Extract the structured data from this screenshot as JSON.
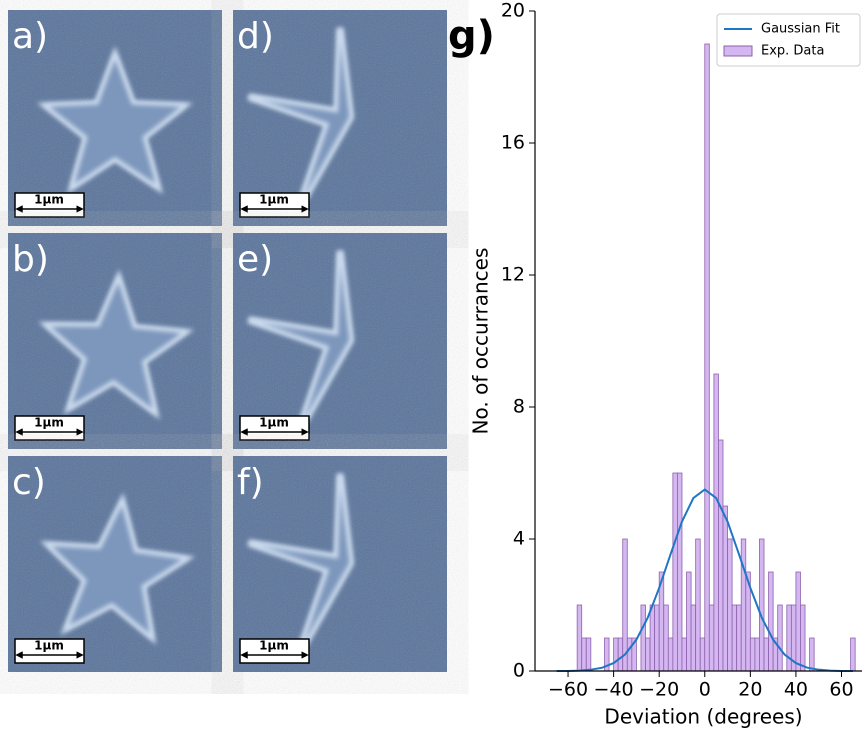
{
  "panels": [
    {
      "label": "a)",
      "scale": "1µm",
      "shape": "star"
    },
    {
      "label": "b)",
      "scale": "1µm",
      "shape": "star"
    },
    {
      "label": "c)",
      "scale": "1µm",
      "shape": "star"
    },
    {
      "label": "d)",
      "scale": "1µm",
      "shape": "tripod"
    },
    {
      "label": "e)",
      "scale": "1µm",
      "shape": "tripod"
    },
    {
      "label": "f)",
      "scale": "1µm",
      "shape": "tripod"
    }
  ],
  "chart_data": {
    "type": "histogram",
    "panel_label": "g)",
    "x_label": "Deviation (degrees)",
    "y_label": "No. of occurrances",
    "xlim": [
      -74.5,
      69
    ],
    "ylim": [
      0,
      20
    ],
    "xticks": [
      {
        "value": -60,
        "label": "−60"
      },
      {
        "value": -40,
        "label": "−40"
      },
      {
        "value": -20,
        "label": "−20"
      },
      0,
      20,
      40,
      60
    ],
    "yticks": [
      0,
      4,
      8,
      12,
      16,
      20
    ],
    "legend": "upper right",
    "series": [
      {
        "name": "Gaussian Fit",
        "type": "line",
        "color": "#1f77c4",
        "x": [
          -65,
          -60,
          -55,
          -50,
          -45,
          -40,
          -35,
          -30,
          -25,
          -20,
          -15,
          -10,
          -5,
          0,
          5,
          10,
          15,
          20,
          25,
          30,
          35,
          40,
          45,
          50,
          55,
          60,
          65
        ],
        "values": [
          0,
          0,
          0.01,
          0.04,
          0.1,
          0.24,
          0.5,
          0.95,
          1.62,
          2.52,
          3.54,
          4.53,
          5.24,
          5.5,
          5.24,
          4.53,
          3.54,
          2.52,
          1.62,
          0.95,
          0.5,
          0.24,
          0.1,
          0.04,
          0.01,
          0,
          0
        ]
      },
      {
        "name": "Exp. Data",
        "type": "histogram",
        "color": "#d4b6f0",
        "edgecolor": "#8d62ad",
        "bins": [
          -58,
          -56,
          -54,
          -52,
          -50,
          -48,
          -46,
          -44,
          -42,
          -40,
          -38,
          -36,
          -34,
          -32,
          -30,
          -28,
          -26,
          -24,
          -22,
          -20,
          -18,
          -16,
          -14,
          -12,
          -10,
          -8,
          -6,
          -4,
          -2,
          0,
          2,
          4,
          6,
          8,
          10,
          12,
          14,
          16,
          18,
          20,
          22,
          24,
          26,
          28,
          30,
          32,
          34,
          36,
          38,
          40,
          42,
          44,
          46,
          48,
          50,
          52,
          54,
          56,
          58,
          60,
          62,
          64,
          66
        ],
        "values": [
          0,
          2,
          1,
          1,
          0,
          0,
          0,
          1,
          0,
          1,
          1,
          4,
          1,
          1,
          0,
          2,
          1,
          2,
          2,
          3,
          2,
          1,
          6,
          6,
          1,
          3,
          2,
          4,
          1,
          19,
          2,
          9,
          7,
          5,
          4,
          2,
          2,
          4,
          3,
          1,
          1,
          4,
          1,
          3,
          1,
          2,
          0,
          2,
          2,
          3,
          2,
          0,
          1,
          0,
          0,
          0,
          0,
          0,
          0,
          0,
          0,
          1
        ]
      }
    ]
  }
}
